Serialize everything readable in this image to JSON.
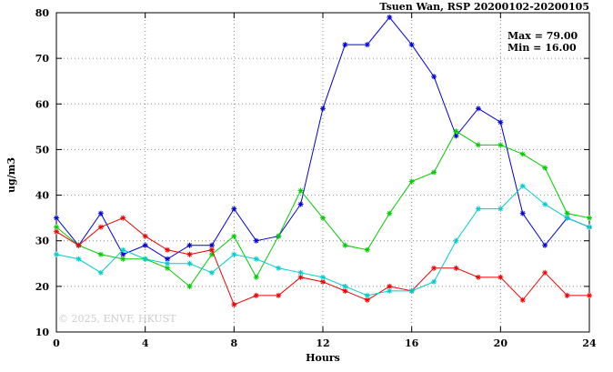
{
  "title": "Tsuen Wan, RSP 20200102-20200105",
  "annotation": {
    "max_label": "Max = 79.00",
    "min_label": "Min = 16.00"
  },
  "watermark": "© 2025, ENVF, HKUST",
  "chart_data": {
    "type": "line",
    "title": "Tsuen Wan, RSP 20200102-20200105",
    "xlabel": "Hours",
    "ylabel": "ug/m3",
    "xlim": [
      0,
      24
    ],
    "ylim": [
      10,
      80
    ],
    "xticks": [
      0,
      4,
      8,
      12,
      16,
      20,
      24
    ],
    "yticks": [
      10,
      20,
      30,
      40,
      50,
      60,
      70,
      80
    ],
    "grid": true,
    "max": 79.0,
    "min": 16.0,
    "x": [
      0,
      1,
      2,
      3,
      4,
      5,
      6,
      7,
      8,
      9,
      10,
      11,
      12,
      13,
      14,
      15,
      16,
      17,
      18,
      19,
      20,
      21,
      22,
      23,
      24
    ],
    "series": [
      {
        "name": "series-blue",
        "color": "#0000dd",
        "values": [
          35,
          29,
          36,
          27,
          29,
          26,
          29,
          29,
          37,
          30,
          31,
          38,
          59,
          73,
          73,
          79,
          73,
          66,
          53,
          59,
          56,
          36,
          29,
          35,
          33
        ]
      },
      {
        "name": "series-green",
        "color": "#00cc00",
        "values": [
          33,
          29,
          27,
          26,
          26,
          24,
          20,
          27,
          31,
          22,
          31,
          41,
          35,
          29,
          28,
          36,
          43,
          45,
          54,
          51,
          51,
          49,
          46,
          36,
          35
        ]
      },
      {
        "name": "series-red",
        "color": "#ee0000",
        "values": [
          32,
          29,
          33,
          35,
          31,
          28,
          27,
          28,
          16,
          18,
          18,
          22,
          21,
          19,
          17,
          20,
          19,
          24,
          24,
          22,
          22,
          17,
          23,
          18,
          18
        ]
      },
      {
        "name": "series-cyan",
        "color": "#00cccc",
        "values": [
          27,
          26,
          23,
          28,
          26,
          25,
          25,
          23,
          27,
          26,
          24,
          23,
          22,
          20,
          18,
          19,
          19,
          21,
          30,
          37,
          37,
          42,
          38,
          35,
          33
        ]
      }
    ]
  }
}
